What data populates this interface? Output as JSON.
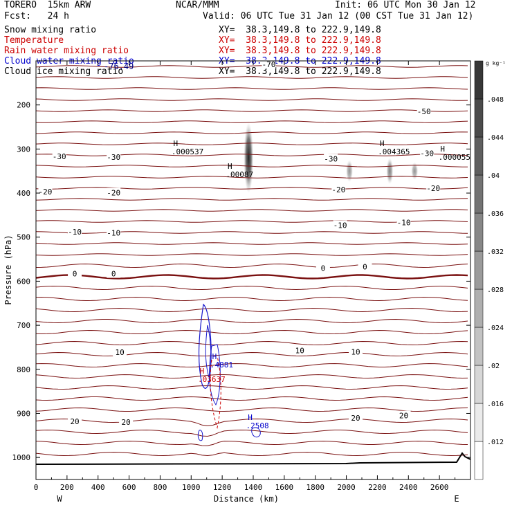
{
  "header": {
    "model": "TORERO  15km ARW",
    "center": "NCAR/MMM",
    "init": "Init: 06 UTC Mon 30 Jan 12",
    "fcst": "Fcst:   24 h",
    "valid": "Valid: 06 UTC Tue 31 Jan 12 (00 CST Tue 31 Jan 12)"
  },
  "fields": [
    {
      "name": "Snow mixing ratio",
      "xy": "XY=  38.3,149.8 to 222.9,149.8",
      "color": "#000000"
    },
    {
      "name": "Temperature",
      "xy": "XY=  38.3,149.8 to 222.9,149.8",
      "color": "#cc0000"
    },
    {
      "name": "Rain water mixing ratio",
      "xy": "XY=  38.3,149.8 to 222.9,149.8",
      "color": "#cc0000"
    },
    {
      "name": "Cloud water mixing ratio",
      "xy": "XY=  38.3,149.8 to 222.9,149.8",
      "color": "#0000cc"
    },
    {
      "name": "Cloud ice mixing ratio",
      "xy": "XY=  38.3,149.8 to 222.9,149.8",
      "color": "#000000"
    }
  ],
  "overlap_label": "-76.49",
  "chart_data": {
    "type": "contour",
    "xlabel": "Distance (km)",
    "ylabel": "Pressure (hPa)",
    "xlim": [
      0,
      2800
    ],
    "ylim": [
      1050,
      100
    ],
    "xticks": [
      0,
      200,
      400,
      600,
      800,
      1000,
      1200,
      1400,
      1600,
      1800,
      2000,
      2200,
      2400,
      2600
    ],
    "yticks": [
      200,
      300,
      400,
      500,
      600,
      700,
      800,
      900,
      1000
    ],
    "west_label": "W",
    "east_label": "E",
    "colorbar": {
      "unit": "g kg⁻¹",
      "ticks": [
        ".012",
        ".016",
        ".02",
        ".024",
        ".028",
        ".032",
        ".036",
        ".04",
        ".044",
        ".048"
      ]
    },
    "temperature_contours": [
      {
        "x": 1500,
        "p": 108,
        "label": "-70"
      },
      {
        "x": 2500,
        "p": 215,
        "label": "-50"
      },
      {
        "x": 500,
        "p": 318,
        "label": "-30"
      },
      {
        "x": 150,
        "p": 317,
        "label": "-30"
      },
      {
        "x": 1900,
        "p": 322,
        "label": "-30"
      },
      {
        "x": 2520,
        "p": 310,
        "label": "-30"
      },
      {
        "x": 60,
        "p": 397,
        "label": "-20"
      },
      {
        "x": 500,
        "p": 399,
        "label": "-20"
      },
      {
        "x": 1950,
        "p": 392,
        "label": "-20"
      },
      {
        "x": 2560,
        "p": 389,
        "label": "-20"
      },
      {
        "x": 250,
        "p": 488,
        "label": "-10"
      },
      {
        "x": 500,
        "p": 490,
        "label": "-10"
      },
      {
        "x": 1960,
        "p": 473,
        "label": "-10"
      },
      {
        "x": 2370,
        "p": 467,
        "label": "-10"
      },
      {
        "x": 250,
        "p": 583,
        "label": "0"
      },
      {
        "x": 500,
        "p": 583,
        "label": "0"
      },
      {
        "x": 1850,
        "p": 570,
        "label": "0"
      },
      {
        "x": 2120,
        "p": 567,
        "label": "0"
      },
      {
        "x": 540,
        "p": 761,
        "label": "10"
      },
      {
        "x": 1700,
        "p": 757,
        "label": "10"
      },
      {
        "x": 2060,
        "p": 760,
        "label": "10"
      },
      {
        "x": 250,
        "p": 918,
        "label": "20"
      },
      {
        "x": 580,
        "p": 920,
        "label": "20"
      },
      {
        "x": 2060,
        "p": 910,
        "label": "20"
      },
      {
        "x": 2370,
        "p": 905,
        "label": "20"
      }
    ],
    "extrema": [
      {
        "type": "H",
        "x": 900,
        "p": 293,
        "value": ".000537",
        "field": "Cloud ice mixing ratio"
      },
      {
        "type": "H",
        "x": 1250,
        "p": 345,
        "value": ".00087",
        "field": "Cloud ice mixing ratio"
      },
      {
        "type": "H",
        "x": 2230,
        "p": 293,
        "value": ".004365",
        "field": "Cloud ice mixing ratio"
      },
      {
        "type": "H",
        "x": 2620,
        "p": 306,
        "value": ".000055",
        "field": "Cloud ice mixing ratio"
      },
      {
        "type": "H",
        "x": 1150,
        "p": 777,
        "value": ".4881",
        "field": "Cloud water mixing ratio"
      },
      {
        "type": "H",
        "x": 1070,
        "p": 810,
        "value": ".03637",
        "field": "Rain water mixing ratio"
      },
      {
        "type": "H",
        "x": 1380,
        "p": 915,
        "value": ".2508",
        "field": "Cloud water mixing ratio"
      }
    ],
    "snow_shading": [
      {
        "x": 1370,
        "p_top": 240,
        "p_bottom": 400,
        "max": 0.048
      },
      {
        "x": 2020,
        "p_top": 325,
        "p_bottom": 375,
        "max": 0.012
      },
      {
        "x": 2280,
        "p_top": 320,
        "p_bottom": 380,
        "max": 0.016
      },
      {
        "x": 2440,
        "p_top": 330,
        "p_bottom": 370,
        "max": 0.012
      }
    ]
  }
}
